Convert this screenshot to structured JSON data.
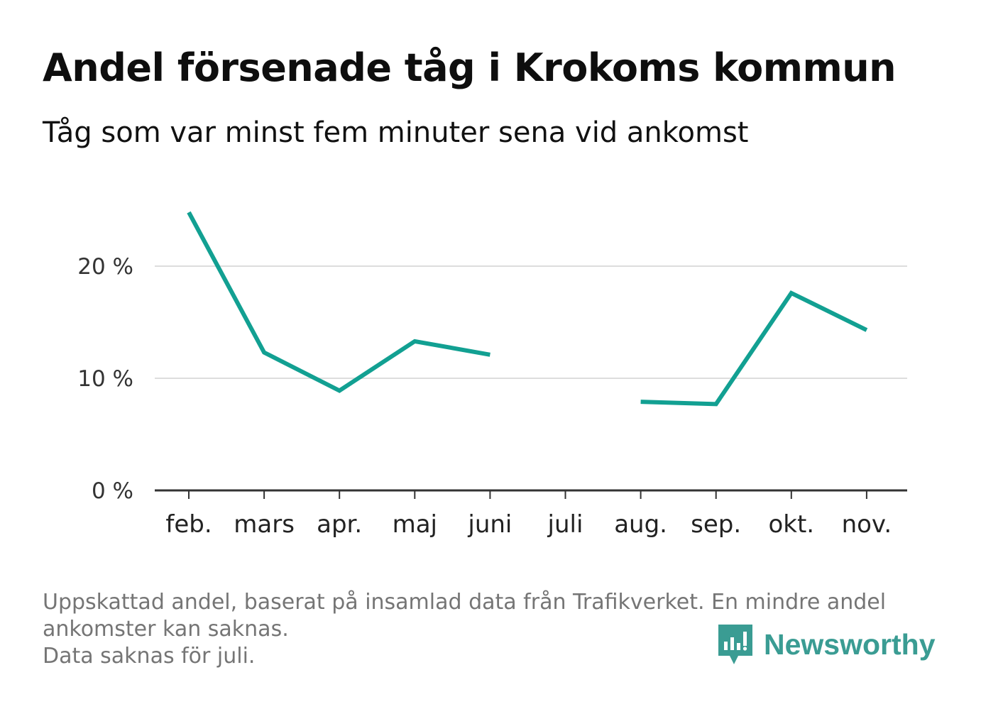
{
  "title": "Andel försenade tåg i Krokoms kommun",
  "subtitle": "Tåg som var minst fem minuter sena vid ankomst",
  "footnote": [
    "Uppskattad andel, baserat på insamlad data från Trafikverket. En mindre andel",
    "ankomster kan saknas.",
    "Data saknas för juli."
  ],
  "brand": {
    "name": "Newsworthy",
    "icon": "newsworthy-logo-icon",
    "color": "#3a9c93"
  },
  "colors": {
    "line": "#12a092",
    "grid": "#dddddd",
    "axis": "#333333"
  },
  "chart_data": {
    "type": "line",
    "title": "Andel försenade tåg i Krokoms kommun",
    "subtitle": "Tåg som var minst fem minuter sena vid ankomst",
    "categories": [
      "feb.",
      "mars",
      "apr.",
      "maj",
      "juni",
      "juli",
      "aug.",
      "sep.",
      "okt.",
      "nov."
    ],
    "series": [
      {
        "values": [
          24.8,
          12.3,
          8.9,
          13.3,
          12.1,
          null,
          7.9,
          7.7,
          17.6,
          14.3
        ]
      }
    ],
    "y_ticks": [
      {
        "value": 0,
        "label": "0 %"
      },
      {
        "value": 10,
        "label": "10 %"
      },
      {
        "value": 20,
        "label": "20 %"
      }
    ],
    "ylim": [
      0,
      25
    ],
    "grid": true,
    "legend": "none"
  }
}
